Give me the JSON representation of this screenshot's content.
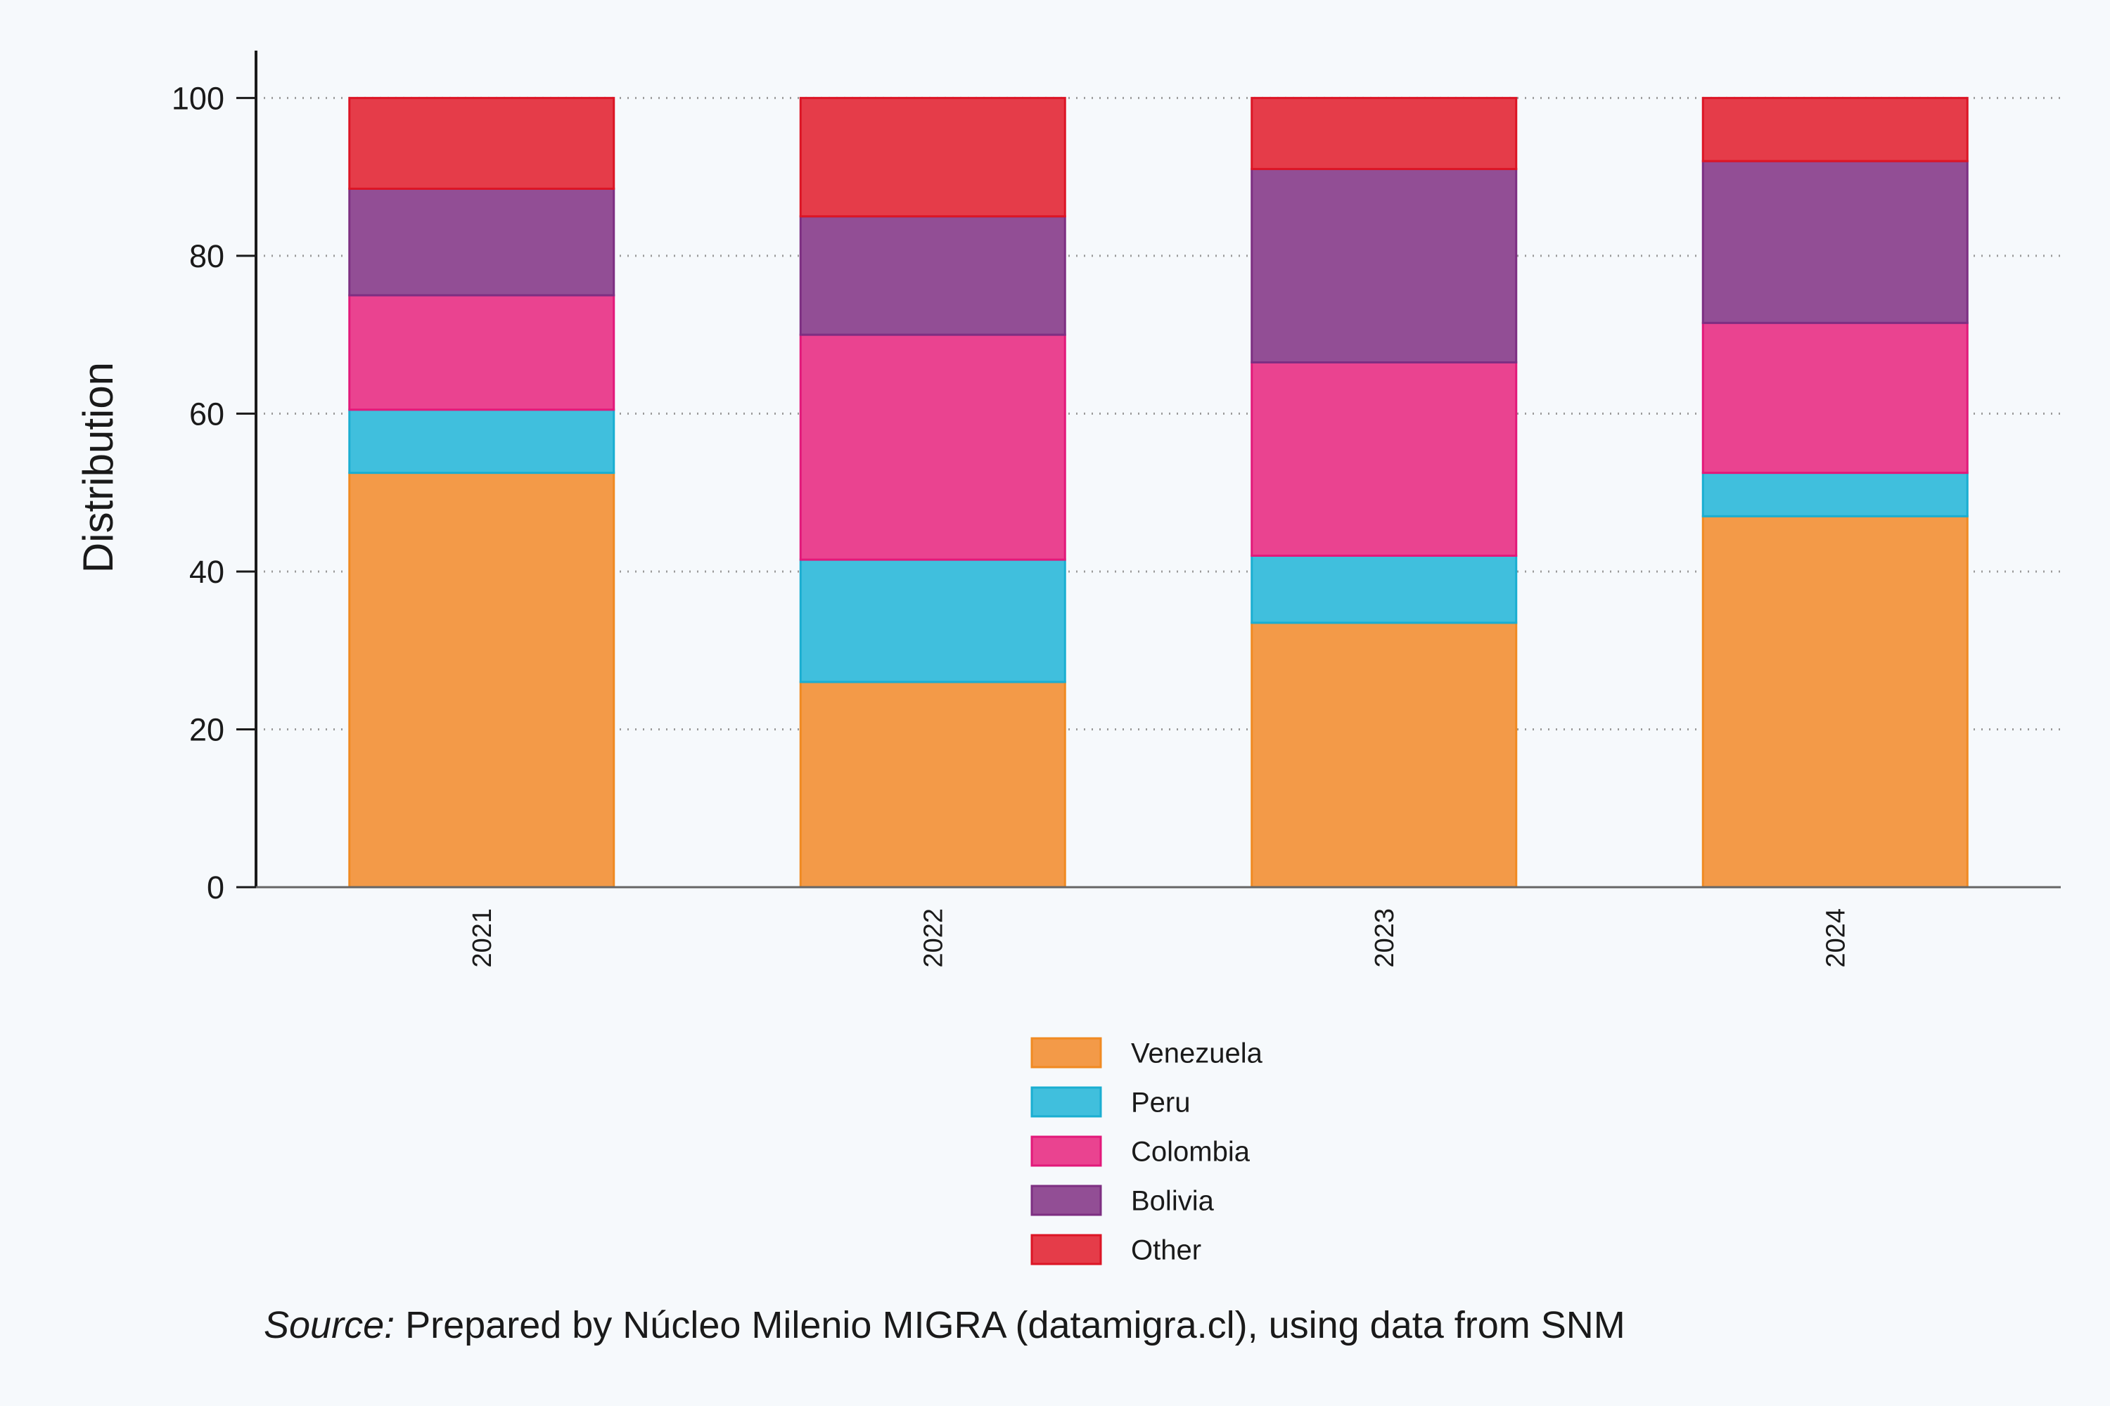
{
  "chart_data": {
    "type": "bar",
    "stacked": true,
    "categories": [
      "2021",
      "2022",
      "2023",
      "2024"
    ],
    "series": [
      {
        "name": "Venezuela",
        "color": "#f39a48",
        "stroke": "#f08a22",
        "values": [
          52.5,
          26.0,
          33.5,
          47.0
        ]
      },
      {
        "name": "Peru",
        "color": "#40bfdd",
        "stroke": "#1aaed1",
        "values": [
          8.0,
          15.5,
          8.5,
          5.5
        ]
      },
      {
        "name": "Colombia",
        "color": "#ea4390",
        "stroke": "#e2197a",
        "values": [
          14.5,
          28.5,
          24.5,
          19.0
        ]
      },
      {
        "name": "Bolivia",
        "color": "#924e95",
        "stroke": "#7d2f82",
        "values": [
          13.5,
          15.0,
          24.5,
          20.5
        ]
      },
      {
        "name": "Other",
        "color": "#e53c49",
        "stroke": "#dc1525",
        "values": [
          11.5,
          15.0,
          9.0,
          8.0
        ]
      }
    ],
    "ylabel": "Distribution",
    "xlabel": "",
    "ylim": [
      0,
      106
    ],
    "yticks": [
      0,
      20,
      40,
      60,
      80,
      100
    ],
    "grid": "horizontal-dotted",
    "legend_position": "bottom",
    "caption_prefix": "Source:",
    "caption_text": " Prepared by Núcleo Milenio MIGRA (datamigra.cl), using data from SNM"
  }
}
